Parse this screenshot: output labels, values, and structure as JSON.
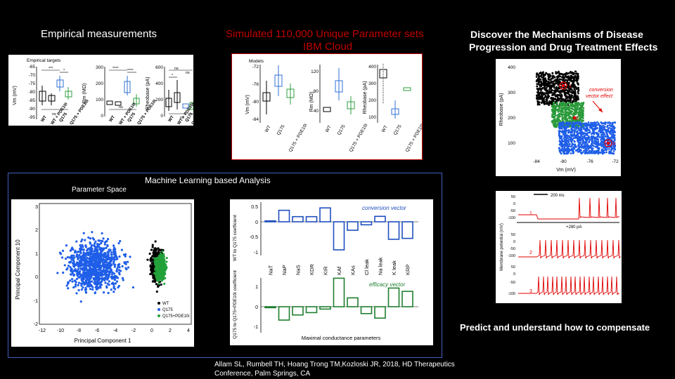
{
  "slide": {
    "empirical_title": "Empirical measurements",
    "sim_title_line1": "Simulated  110,000 Unique Parameter sets",
    "sim_title_line2": "IBM Cloud",
    "discover_line1": "Discover the Mechanisms of Disease",
    "discover_line2": "Progression and Drug Treatment Effects",
    "ml_title": "Machine Learning based Analysis",
    "param_space": "Parameter Space",
    "predict": "Predict and understand how to compensate",
    "citation_line1": "Allam SL, Rumbell TH, Hoang Trong TM,Kozloski JR, 2018, HD Therapeutics",
    "citation_line2": "Conference, Palm Springs, CA"
  },
  "empirical_panel": {
    "label": "Empirical targets",
    "groups": [
      "WT",
      "WT + PDE10i",
      "Q175",
      "Q175 + PDE10i"
    ],
    "colors": {
      "WT": "#000000",
      "WT + PDE10i": "#000000",
      "Q175": "#2f6fd6",
      "Q175 + PDE10i": "#2e9e3e"
    },
    "vm": {
      "ylabel": "Vm (mV)",
      "ticks": [
        "-65",
        "-70",
        "-75",
        "-80",
        "-85",
        "-90",
        "-95"
      ],
      "sig": [
        "***",
        "*",
        "ns"
      ]
    },
    "rm": {
      "ylabel": "Rm (MΩ)",
      "ticks": [
        "300",
        "200",
        "100",
        "0"
      ],
      "sig": [
        "****",
        "****",
        "ns"
      ]
    },
    "rh": {
      "ylabel": "Rheobase (pA)",
      "ticks": [
        "600",
        "400",
        "200",
        "0"
      ],
      "sig": [
        "ns",
        "ns",
        "*",
        "ns"
      ]
    }
  },
  "model_panel": {
    "label": "Models",
    "groups": [
      "WT",
      "Q175",
      "Q175 + PDE10i"
    ],
    "vm": {
      "ylabel": "Vm (mV)",
      "ticks": [
        "-72",
        "-76",
        "-80",
        "-84"
      ]
    },
    "rm": {
      "ylabel": "Rm (MΩ)",
      "ticks": [
        "120",
        "80",
        "40"
      ]
    },
    "rh": {
      "ylabel": "Rheobase (pA)",
      "ticks": [
        "400",
        "300",
        "200",
        "100"
      ]
    }
  },
  "pca": {
    "xlabel": "Principal Component 1",
    "ylabel": "Principal Component 10",
    "xticks": [
      "-12",
      "-10",
      "-8",
      "-6",
      "-4",
      "-2",
      "0",
      "2",
      "4"
    ],
    "yticks": [
      "3",
      "2",
      "1",
      "0",
      "-1",
      "-2"
    ],
    "legend": [
      "WT",
      "Q175",
      "Q175+PDE10i"
    ],
    "colors": [
      "#000000",
      "#1f5ee8",
      "#23a13a"
    ]
  },
  "vectors": {
    "params": [
      "NaT",
      "NaP",
      "NaS",
      "KDR",
      "KIR",
      "KAf",
      "KAs",
      "Cl leak",
      "Na leak",
      "K leak",
      "KRP"
    ],
    "conversion": [
      0.03,
      0.38,
      0.17,
      0.17,
      0.46,
      -0.93,
      -0.28,
      -0.1,
      0.18,
      -0.58,
      -0.55
    ],
    "efficacy": [
      -0.05,
      -0.68,
      -0.42,
      -0.3,
      -0.12,
      1.45,
      0.45,
      -0.35,
      -0.58,
      0.95,
      0.78
    ],
    "conversion_label": "conversion vector",
    "efficacy_label": "efficacy vector",
    "top_ylabel": "WT to Q175 coefficient",
    "bottom_ylabel": "Q175 to Q175+PDE10i coefficient",
    "xlabel": "Maximal conductance parameters",
    "top_ticks": [
      "0.5",
      "0",
      "-0.5",
      "-1"
    ],
    "bottom_ticks": [
      "1",
      "0",
      "-1"
    ]
  },
  "rheobase_map": {
    "ylabel": "Rheobase (pA)",
    "xlabel": "Vm (mV)",
    "xticks": [
      "-84",
      "-80",
      "-76",
      "-72"
    ],
    "yticks": [
      "400",
      "300",
      "200",
      "100"
    ],
    "annotation_line1": "conversion",
    "annotation_line2": "vector effect",
    "points": [
      "1",
      "2",
      "3"
    ]
  },
  "traces": {
    "scale_label": "200 ms",
    "current_label": "+280 pA",
    "ylabel": "Membrane potential (mV)",
    "ticks": [
      "50",
      "0",
      "-50",
      "-100"
    ],
    "labels": [
      "1",
      "2",
      "3"
    ]
  }
}
